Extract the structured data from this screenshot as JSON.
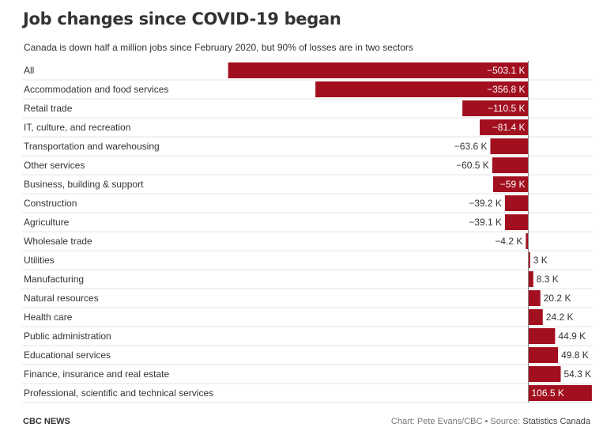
{
  "header": {
    "title": "Job changes since COVID-19 began",
    "subtitle": "Canada is down half a million jobs since February 2020, but 90% of losses are in two sectors"
  },
  "footer": {
    "brand": "CBC NEWS",
    "credit": "Chart: Pete Evans/CBC • Source: ",
    "source_link": "Statistics Canada"
  },
  "colors": {
    "bar": "#a20f1e",
    "label_inside": "#ffffff",
    "label_outside": "#333333",
    "row_divider": "#e6e6e6"
  },
  "chart_data": {
    "type": "bar",
    "orientation": "horizontal",
    "categories": [
      "All",
      "Accommodation and food services",
      "Retail trade",
      "IT, culture, and recreation",
      "Transportation and warehousing",
      "Other services",
      "Business, building & support",
      "Construction",
      "Agriculture",
      "Wholesale trade",
      "Utilities",
      "Manufacturing",
      "Natural resources",
      "Health care",
      "Public administration",
      "Educational services",
      "Finance, insurance and real estate",
      "Professional, scientific and technical services"
    ],
    "values": [
      -503.1,
      -356.8,
      -110.5,
      -81.4,
      -63.6,
      -60.5,
      -59,
      -39.2,
      -39.1,
      -4.2,
      3,
      8.3,
      20.2,
      24.2,
      44.9,
      49.8,
      54.3,
      106.5
    ],
    "labels": [
      "−503.1 K",
      "−356.8 K",
      "−110.5 K",
      "−81.4 K",
      "−63.6 K",
      "−60.5 K",
      "−59 K",
      "−39.2 K",
      "−39.1 K",
      "−4.2 K",
      "3 K",
      "8.3 K",
      "20.2 K",
      "24.2 K",
      "44.9 K",
      "49.8 K",
      "54.3 K",
      "106.5 K"
    ],
    "labels_inside": [
      true,
      true,
      true,
      true,
      false,
      false,
      true,
      false,
      false,
      false,
      false,
      false,
      false,
      false,
      false,
      false,
      false,
      true
    ],
    "unit": "K"
  }
}
